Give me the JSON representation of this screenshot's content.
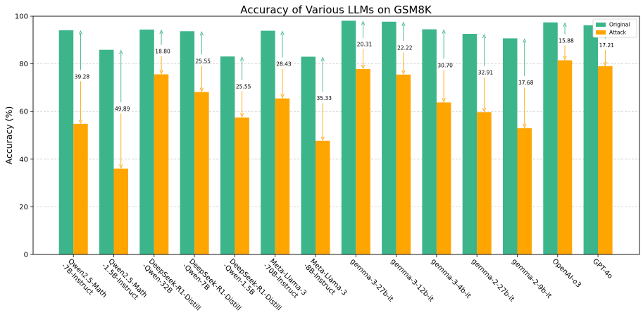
{
  "chart_data": {
    "type": "bar",
    "title": "Accuracy of Various LLMs on GSM8K",
    "xlabel": "",
    "ylabel": "Accuracy (%)",
    "ylim": [
      0,
      100
    ],
    "yticks": [
      0,
      20,
      40,
      60,
      80,
      100
    ],
    "grid": "horizontal dashed",
    "legend_position": "top-right",
    "categories": [
      "Qwen2.5-Math\n-7B-Instruct",
      "Qwen2.5-Math\n-1.5B-Instruct",
      "DeepSeek-R1-Distill\n-Qwen-32B",
      "DeepSeek-R1-Distill\n-Qwen-7B",
      "DeepSeek-R1-Distill\n-Qwen-1.5B",
      "Meta-Llama-3\n-70B-Instruct",
      "Meta-Llama-3\n-8B-Instruct",
      "gemma-3-27b-it",
      "gemma-3-12b-it",
      "gemma-3-4b-it",
      "gemma-2-27b-it",
      "gemma-2-9b-it",
      "OpenAI-o3",
      "GPT-4o"
    ],
    "series": [
      {
        "name": "Original",
        "color": "#3cb58a",
        "values": [
          94.1,
          85.9,
          94.4,
          93.7,
          83.1,
          93.9,
          83.0,
          98.1,
          97.7,
          94.5,
          92.6,
          90.7,
          97.4,
          96.2
        ]
      },
      {
        "name": "Attack",
        "color": "#ffa500",
        "values": [
          54.8,
          36.0,
          75.6,
          68.2,
          57.5,
          65.5,
          47.7,
          77.8,
          75.5,
          63.8,
          59.7,
          53.0,
          81.5,
          79.0
        ]
      }
    ],
    "annotations": [
      "39.28",
      "49.89",
      "18.80",
      "25.55",
      "25.55",
      "28.43",
      "35.33",
      "20.31",
      "22.22",
      "30.70",
      "32.91",
      "37.68",
      "15.88",
      "17.21"
    ]
  }
}
